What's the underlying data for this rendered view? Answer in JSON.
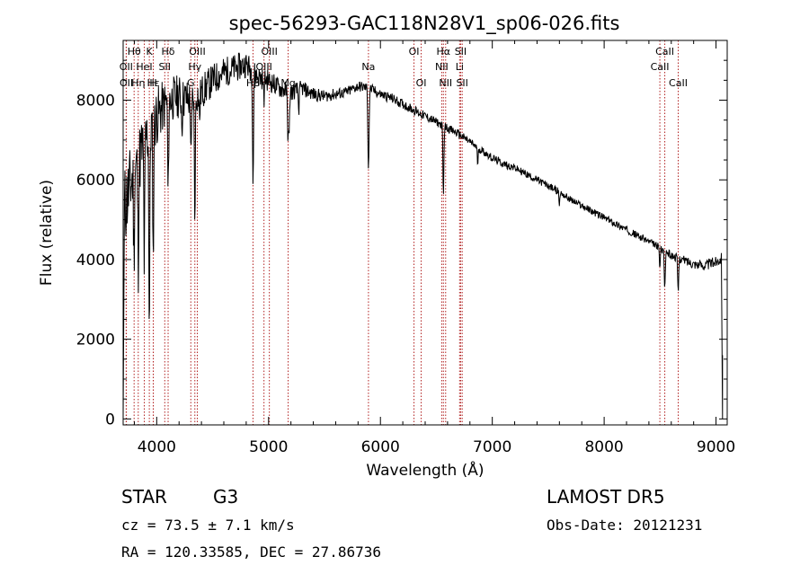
{
  "chart_data": {
    "type": "line",
    "title": "spec-56293-GAC118N28V1_sp06-026.fits",
    "xlabel": "Wavelength (Å)",
    "ylabel": "Flux (relative)",
    "xlim": [
      3700,
      9100
    ],
    "ylim": [
      -150,
      9500
    ],
    "xticks": [
      4000,
      5000,
      6000,
      7000,
      8000,
      9000
    ],
    "yticks": [
      0,
      2000,
      4000,
      6000,
      8000
    ],
    "line_color": "#000000",
    "marker_color": "#b22222",
    "grid": false,
    "lines": [
      {
        "name": "Hθ",
        "x": 3798,
        "row": 0
      },
      {
        "name": "OII",
        "x": 3727,
        "row": 1
      },
      {
        "name": "OII",
        "x": 3729,
        "row": 2
      },
      {
        "name": "Hη",
        "x": 3835,
        "row": 2
      },
      {
        "name": "K",
        "x": 3934,
        "row": 0
      },
      {
        "name": "HeI",
        "x": 3889,
        "row": 1
      },
      {
        "name": "H",
        "x": 3969,
        "row": 2
      },
      {
        "name": "Hδ",
        "x": 4102,
        "row": 0
      },
      {
        "name": "SII",
        "x": 4072,
        "row": 1
      },
      {
        "name": "Hε",
        "x": 3970,
        "row": 2
      },
      {
        "name": "OIII",
        "x": 4363,
        "row": 0
      },
      {
        "name": "Hγ",
        "x": 4341,
        "row": 1
      },
      {
        "name": "G",
        "x": 4305,
        "row": 2
      },
      {
        "name": "OIII",
        "x": 5007,
        "row": 0
      },
      {
        "name": "OIII",
        "x": 4959,
        "row": 1
      },
      {
        "name": "Hβ",
        "x": 4861,
        "row": 2
      },
      {
        "name": "Mg",
        "x": 5175,
        "row": 2
      },
      {
        "name": "Na",
        "x": 5893,
        "row": 1
      },
      {
        "name": "OI",
        "x": 6300,
        "row": 0
      },
      {
        "name": "OI",
        "x": 6364,
        "row": 2
      },
      {
        "name": "Hα",
        "x": 6563,
        "row": 0
      },
      {
        "name": "NII",
        "x": 6548,
        "row": 1
      },
      {
        "name": "NII",
        "x": 6583,
        "row": 2
      },
      {
        "name": "SII",
        "x": 6717,
        "row": 0
      },
      {
        "name": "Li",
        "x": 6708,
        "row": 1
      },
      {
        "name": "SII",
        "x": 6731,
        "row": 2
      },
      {
        "name": "CaII",
        "x": 8542,
        "row": 0
      },
      {
        "name": "CaII",
        "x": 8498,
        "row": 1
      },
      {
        "name": "CaII",
        "x": 8662,
        "row": 2
      }
    ],
    "spectrum": {
      "continuum": [
        [
          3700,
          5200
        ],
        [
          3800,
          6200
        ],
        [
          3900,
          7000
        ],
        [
          4000,
          7600
        ],
        [
          4100,
          8000
        ],
        [
          4200,
          8100
        ],
        [
          4300,
          8000
        ],
        [
          4400,
          8200
        ],
        [
          4500,
          8500
        ],
        [
          4600,
          8700
        ],
        [
          4700,
          8800
        ],
        [
          4800,
          8900
        ],
        [
          4900,
          8600
        ],
        [
          5000,
          8500
        ],
        [
          5100,
          8300
        ],
        [
          5200,
          8200
        ],
        [
          5300,
          8300
        ],
        [
          5400,
          8150
        ],
        [
          5500,
          8100
        ],
        [
          5600,
          8150
        ],
        [
          5700,
          8200
        ],
        [
          5800,
          8350
        ],
        [
          5900,
          8300
        ],
        [
          6000,
          8150
        ],
        [
          6100,
          8050
        ],
        [
          6200,
          7900
        ],
        [
          6300,
          7750
        ],
        [
          6400,
          7600
        ],
        [
          6500,
          7450
        ],
        [
          6600,
          7300
        ],
        [
          6700,
          7150
        ],
        [
          6800,
          6950
        ],
        [
          6900,
          6750
        ],
        [
          7000,
          6550
        ],
        [
          7100,
          6400
        ],
        [
          7200,
          6300
        ],
        [
          7300,
          6150
        ],
        [
          7400,
          6000
        ],
        [
          7500,
          5850
        ],
        [
          7600,
          5700
        ],
        [
          7700,
          5500
        ],
        [
          7800,
          5350
        ],
        [
          7900,
          5200
        ],
        [
          8000,
          5050
        ],
        [
          8100,
          4900
        ],
        [
          8200,
          4750
        ],
        [
          8300,
          4600
        ],
        [
          8400,
          4450
        ],
        [
          8500,
          4300
        ],
        [
          8600,
          4100
        ],
        [
          8700,
          4000
        ],
        [
          8800,
          3900
        ],
        [
          8900,
          3850
        ],
        [
          9000,
          3950
        ],
        [
          9050,
          4050
        ]
      ],
      "absorption": [
        [
          3797,
          2000
        ],
        [
          3835,
          2500
        ],
        [
          3889,
          3000
        ],
        [
          3934,
          5000
        ],
        [
          3969,
          3500
        ],
        [
          4102,
          2500
        ],
        [
          4226,
          600
        ],
        [
          4308,
          1500
        ],
        [
          4341,
          3000
        ],
        [
          4383,
          600
        ],
        [
          4861,
          2800
        ],
        [
          4958,
          500
        ],
        [
          5172,
          1000
        ],
        [
          5183,
          1200
        ],
        [
          5270,
          500
        ],
        [
          5890,
          1300
        ],
        [
          5896,
          1200
        ],
        [
          6563,
          1800
        ],
        [
          6870,
          400
        ],
        [
          7600,
          300
        ],
        [
          8498,
          500
        ],
        [
          8542,
          1000
        ],
        [
          8662,
          900
        ]
      ],
      "noise_scale": [
        [
          3700,
          1100
        ],
        [
          3900,
          900
        ],
        [
          4100,
          600
        ],
        [
          4400,
          450
        ],
        [
          4900,
          300
        ],
        [
          5500,
          150
        ],
        [
          6500,
          110
        ],
        [
          7500,
          90
        ],
        [
          8500,
          90
        ],
        [
          9050,
          150
        ]
      ],
      "edge_blue": {
        "x": 3708,
        "y": 2500
      },
      "edge_red": {
        "x": 9058,
        "y": 1600
      }
    }
  },
  "footer": {
    "object_type": "STAR",
    "subclass": "G3",
    "survey": "LAMOST DR5",
    "cz": "cz = 73.5 ± 7.1 km/s",
    "obs_date": "Obs-Date: 20121231",
    "coords": "RA = 120.33585, DEC =  27.86736"
  }
}
